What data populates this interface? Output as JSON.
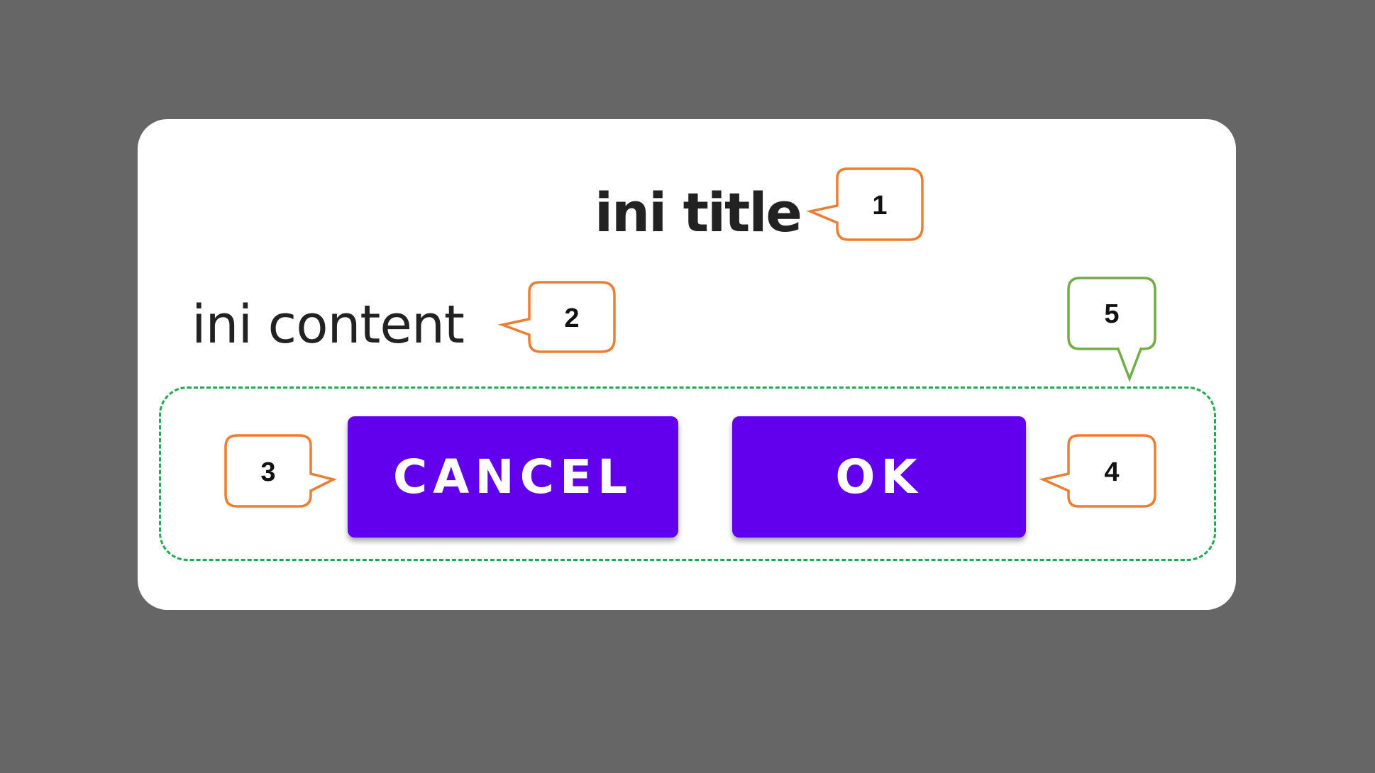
{
  "dialog": {
    "title": "ini title",
    "content": "ini content",
    "buttons": {
      "cancel_label": "CANCEL",
      "ok_label": "OK"
    }
  },
  "callouts": [
    "1",
    "2",
    "3",
    "4",
    "5"
  ],
  "colors": {
    "background": "#666666",
    "dialog": "#ffffff",
    "button": "#6200ee",
    "callout_orange": "#ed7d31",
    "callout_green": "#70ad47",
    "dashed_group": "#22aa4e"
  }
}
